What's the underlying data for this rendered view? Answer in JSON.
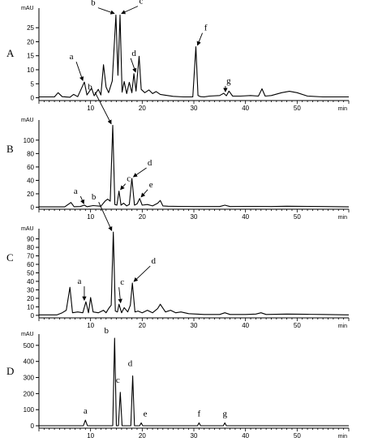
{
  "chart_data": [
    {
      "type": "line",
      "panel": "A",
      "ylabel": "mAU",
      "xlabel": "min",
      "xlim": [
        0,
        60
      ],
      "ylim": [
        -1,
        32
      ],
      "yticks": [
        0,
        5,
        10,
        15,
        20,
        25
      ],
      "xticks": [
        10,
        20,
        30,
        40,
        50
      ],
      "series": [
        {
          "x": [
            0,
            3,
            3.7,
            4.5,
            6,
            6.7,
            7.5,
            8.8,
            9.3,
            10.2,
            10.7,
            11.5,
            12,
            12.5,
            13,
            13.5,
            14.2,
            14.9,
            15.3,
            15.7,
            16.1,
            16.5,
            17,
            17.5,
            18,
            18.4,
            18.8,
            19.4,
            19.8,
            20.5,
            21.3,
            22,
            22.7,
            23.5,
            24.5,
            26,
            28,
            29.8,
            30.4,
            30.8,
            31.3,
            32,
            33,
            35,
            35.8,
            36.3,
            36.8,
            37.5,
            39,
            41,
            42.5,
            43.2,
            43.8,
            45,
            47,
            48.5,
            50,
            52,
            55,
            58,
            60
          ],
          "y": [
            0.3,
            0.3,
            1.8,
            0.4,
            0.2,
            1.2,
            0.4,
            5.6,
            1.0,
            3.4,
            0.7,
            3.0,
            1.0,
            11.8,
            3.8,
            1.8,
            6.0,
            29.5,
            8.0,
            29.5,
            2.0,
            5.8,
            1.5,
            5.5,
            1.8,
            8.6,
            2.4,
            14.8,
            3.0,
            1.8,
            2.8,
            1.5,
            2.2,
            1.2,
            0.9,
            0.5,
            0.3,
            0.3,
            18.2,
            0.8,
            0.4,
            0.3,
            0.6,
            0.8,
            1.6,
            0.7,
            2.4,
            0.6,
            0.6,
            0.8,
            0.6,
            3.2,
            0.6,
            0.8,
            1.8,
            2.3,
            1.8,
            0.6,
            0.3,
            0.3,
            0.3
          ]
        }
      ],
      "annotations": [
        {
          "label": "a",
          "x": 8.8,
          "y": 5.6
        },
        {
          "label": "b",
          "x": 14.9,
          "y": 29.5
        },
        {
          "label": "c",
          "x": 15.7,
          "y": 29.5
        },
        {
          "label": "d",
          "x": 18.4,
          "y": 8.6
        },
        {
          "label": "f",
          "x": 30.4,
          "y": 18.2
        },
        {
          "label": "g",
          "x": 35.8,
          "y": 1.6
        }
      ]
    },
    {
      "type": "line",
      "panel": "B",
      "ylabel": "mAU",
      "xlabel": "min",
      "xlim": [
        0,
        60
      ],
      "ylim": [
        -3,
        130
      ],
      "yticks": [
        0,
        20,
        40,
        60,
        80,
        100
      ],
      "xticks": [
        10,
        20,
        30,
        40,
        50
      ],
      "series": [
        {
          "x": [
            0,
            5,
            6.2,
            6.8,
            8,
            8.8,
            9.3,
            10.5,
            12,
            12.8,
            13.3,
            13.8,
            14.3,
            14.7,
            15.1,
            15.5,
            15.9,
            16.4,
            17,
            17.5,
            18,
            18.5,
            19,
            19.5,
            20,
            21,
            22,
            23,
            23.5,
            24,
            25,
            27,
            30,
            35,
            36,
            37,
            40,
            42,
            45,
            48,
            52,
            55,
            60
          ],
          "y": [
            0.5,
            0.5,
            7,
            0.8,
            1,
            3,
            0.8,
            2.5,
            1.5,
            9,
            12,
            9,
            122,
            4,
            3,
            24,
            3,
            6,
            2,
            4,
            43,
            3,
            5,
            13,
            3,
            4,
            2,
            6,
            10,
            2,
            1.5,
            1.2,
            1,
            1,
            3,
            1,
            1.2,
            1.2,
            1,
            1.5,
            1.2,
            1,
            0.5
          ]
        }
      ],
      "annotations": [
        {
          "label": "a",
          "x": 9,
          "y": 3
        },
        {
          "label": "b",
          "x": 14.3,
          "y": 122
        },
        {
          "label": "c",
          "x": 15.5,
          "y": 24
        },
        {
          "label": "d",
          "x": 18,
          "y": 43
        },
        {
          "label": "e",
          "x": 19.5,
          "y": 13
        }
      ]
    },
    {
      "type": "line",
      "panel": "C",
      "ylabel": "mAU",
      "xlabel": "min",
      "xlim": [
        0,
        60
      ],
      "ylim": [
        -3,
        102
      ],
      "yticks": [
        0,
        10,
        20,
        30,
        40,
        50,
        60,
        70,
        80,
        90
      ],
      "xticks": [
        10,
        20,
        30,
        40,
        50
      ],
      "series": [
        {
          "x": [
            0,
            3.5,
            4.5,
            5.3,
            6,
            6.5,
            7.5,
            8.5,
            9.1,
            9.6,
            10,
            10.5,
            11.5,
            12.5,
            13,
            13.5,
            14,
            14.4,
            14.8,
            15.2,
            15.5,
            16,
            16.5,
            17.2,
            17.7,
            18.1,
            18.6,
            19.2,
            20,
            21,
            22,
            23,
            23.5,
            24.5,
            25.5,
            26.5,
            27.5,
            29,
            32,
            35,
            36,
            37,
            40,
            42,
            43,
            44,
            48,
            52,
            55,
            60
          ],
          "y": [
            0.5,
            0.5,
            3,
            6,
            33,
            3,
            4,
            3,
            16,
            3,
            21,
            4,
            3,
            6,
            3,
            8,
            12,
            98,
            5,
            4,
            13,
            3,
            9,
            4,
            12,
            38,
            4,
            5,
            3,
            6,
            3,
            8,
            13,
            4,
            6,
            3,
            4,
            2,
            1,
            1,
            3,
            1,
            1,
            1.5,
            3,
            1,
            1.5,
            1.2,
            1,
            0.5
          ]
        }
      ],
      "annotations": [
        {
          "label": "a",
          "x": 9.1,
          "y": 16
        },
        {
          "label": "b",
          "x": 14.4,
          "y": 98
        },
        {
          "label": "c",
          "x": 15.5,
          "y": 13
        },
        {
          "label": "d",
          "x": 18.1,
          "y": 38
        }
      ]
    },
    {
      "type": "line",
      "panel": "D",
      "ylabel": "mAU",
      "xlabel": "min",
      "xlim": [
        0,
        60
      ],
      "ylim": [
        -15,
        570
      ],
      "yticks": [
        0,
        100,
        200,
        300,
        400,
        500
      ],
      "xticks": [
        10,
        20,
        30,
        40,
        50
      ],
      "series": [
        {
          "x": [
            0,
            8.6,
            9,
            9.4,
            14.3,
            14.65,
            15,
            15.4,
            15.75,
            16.1,
            17.8,
            18.15,
            18.5,
            19.5,
            19.8,
            20.1,
            30.7,
            31,
            31.3,
            35.7,
            36,
            36.3,
            60
          ],
          "y": [
            0,
            0,
            35,
            0,
            0,
            545,
            0,
            0,
            208,
            0,
            0,
            310,
            0,
            0,
            18,
            0,
            0,
            18,
            0,
            0,
            18,
            0,
            0
          ]
        }
      ],
      "annotations": [
        {
          "label": "a",
          "x": 9,
          "y": 35
        },
        {
          "label": "b",
          "x": 14.65,
          "y": 545
        },
        {
          "label": "c",
          "x": 15.75,
          "y": 208
        },
        {
          "label": "d",
          "x": 18.15,
          "y": 310
        },
        {
          "label": "e",
          "x": 19.8,
          "y": 18
        },
        {
          "label": "f",
          "x": 31,
          "y": 18
        },
        {
          "label": "g",
          "x": 36,
          "y": 18
        }
      ]
    }
  ]
}
